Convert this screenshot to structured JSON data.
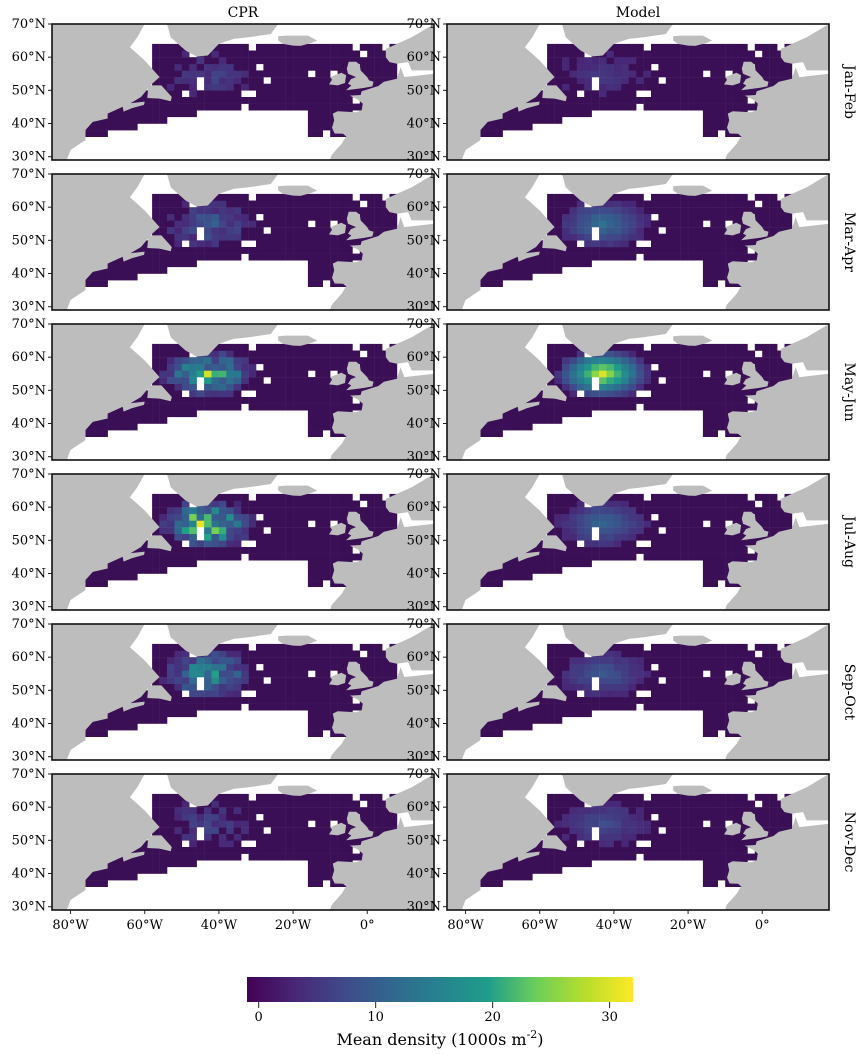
{
  "columns": [
    "CPR",
    "Model"
  ],
  "rows": [
    "Jan-Feb",
    "Mar-Apr",
    "May-Jun",
    "Jul-Aug",
    "Sep-Oct",
    "Nov-Dec"
  ],
  "lat_ticks": [
    "30°N",
    "40°N",
    "50°N",
    "60°N",
    "70°N"
  ],
  "lon_ticks": [
    "80°W",
    "60°W",
    "40°W",
    "20°W",
    "0°"
  ],
  "colorbar": {
    "label": "Mean density (1000s m",
    "label_sup": "-2",
    "label_tail": ")",
    "ticks": [
      "0",
      "10",
      "20",
      "30"
    ],
    "tick_values": [
      0,
      10,
      20,
      30
    ],
    "range": [
      -1,
      32
    ],
    "colors": [
      "#440154",
      "#482777",
      "#3f4a8a",
      "#31678e",
      "#26838f",
      "#1f9d8a",
      "#6cce5a",
      "#b6de2b",
      "#fee825"
    ]
  },
  "colors": {
    "land": "#bdbdbd",
    "ocean": "#ffffff",
    "low_density": "#3b0f56"
  },
  "chart_data": {
    "type": "heatmap",
    "extent": {
      "lon": [
        -85,
        18
      ],
      "lat": [
        29,
        70
      ]
    },
    "seasonal_hotspots": [
      {
        "panel": "CPR Jan-Feb",
        "level": 4
      },
      {
        "panel": "CPR Mar-Apr",
        "level": 8
      },
      {
        "panel": "CPR May-Jun",
        "level": 22
      },
      {
        "panel": "CPR Jul-Aug",
        "level": 28
      },
      {
        "panel": "CPR Sep-Oct",
        "level": 18
      },
      {
        "panel": "CPR Nov-Dec",
        "level": 4
      },
      {
        "panel": "Model Jan-Feb",
        "level": 3
      },
      {
        "panel": "Model Mar-Apr",
        "level": 12
      },
      {
        "panel": "Model May-Jun",
        "level": 30
      },
      {
        "panel": "Model Jul-Aug",
        "level": 10
      },
      {
        "panel": "Model Sep-Oct",
        "level": 8
      },
      {
        "panel": "Model Nov-Dec",
        "level": 6
      }
    ]
  }
}
